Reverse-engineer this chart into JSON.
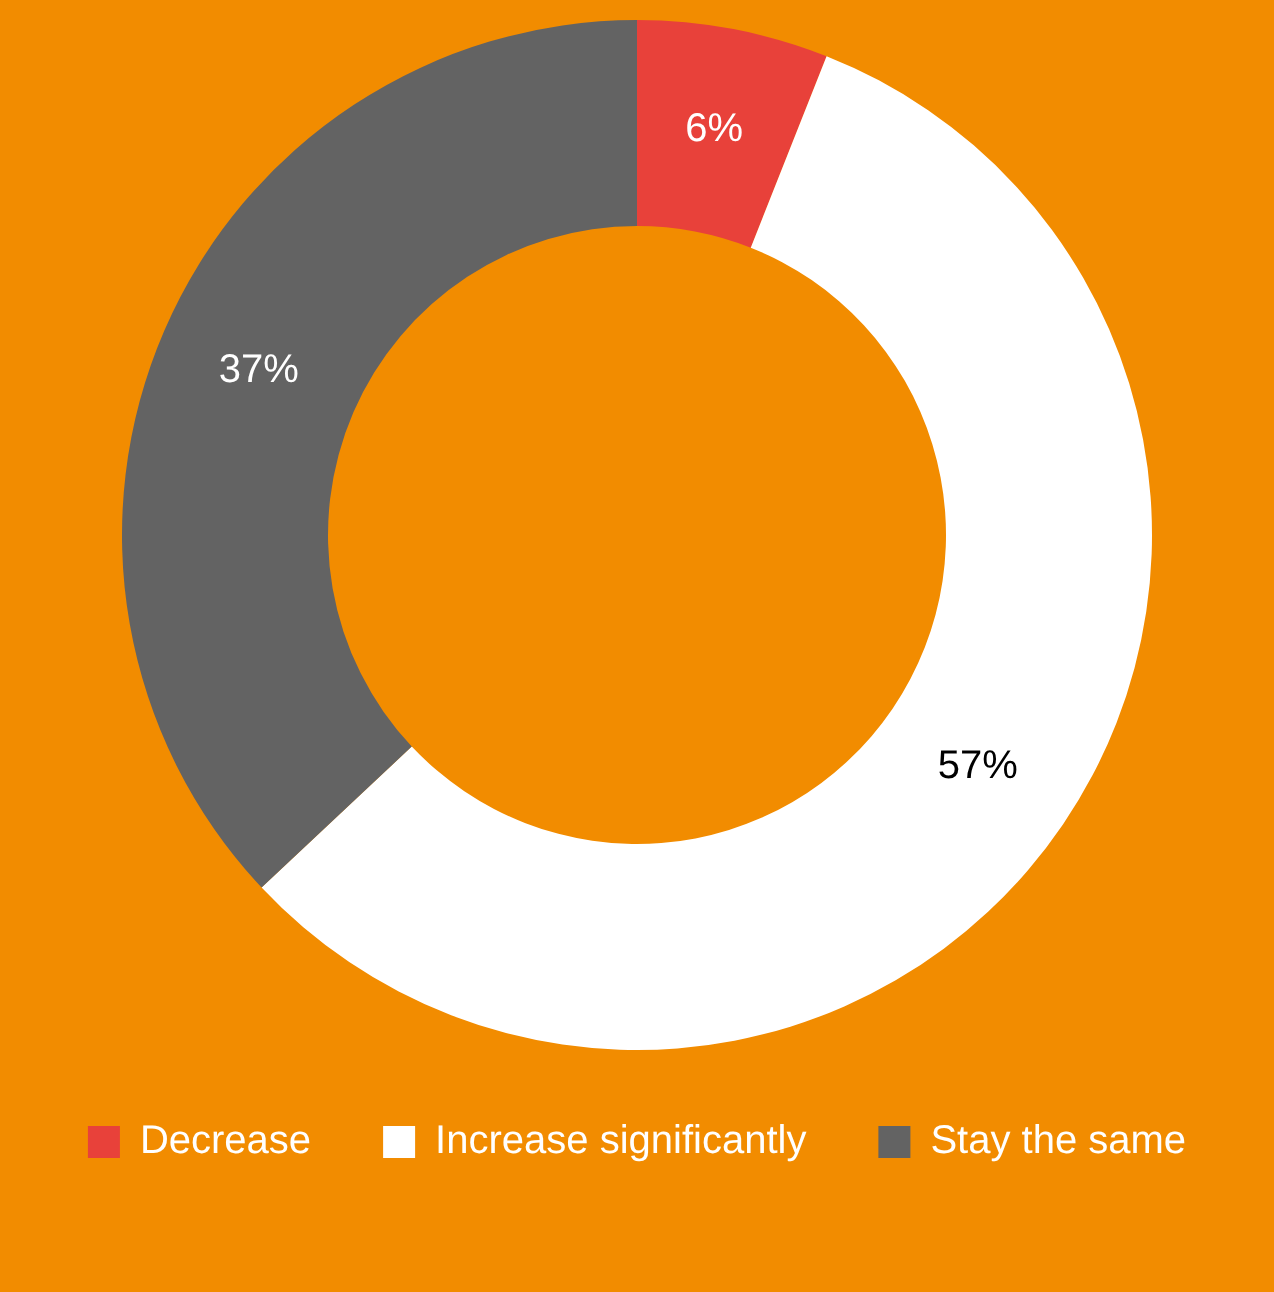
{
  "chart_data": {
    "type": "donut",
    "categories": [
      "Decrease",
      "Increase significantly",
      "Stay the same"
    ],
    "values": [
      6,
      57,
      37
    ],
    "colors": [
      "#e8413a",
      "#ffffff",
      "#636363"
    ],
    "value_labels": [
      "6%",
      "57%",
      "37%"
    ],
    "legend": "bottom"
  }
}
